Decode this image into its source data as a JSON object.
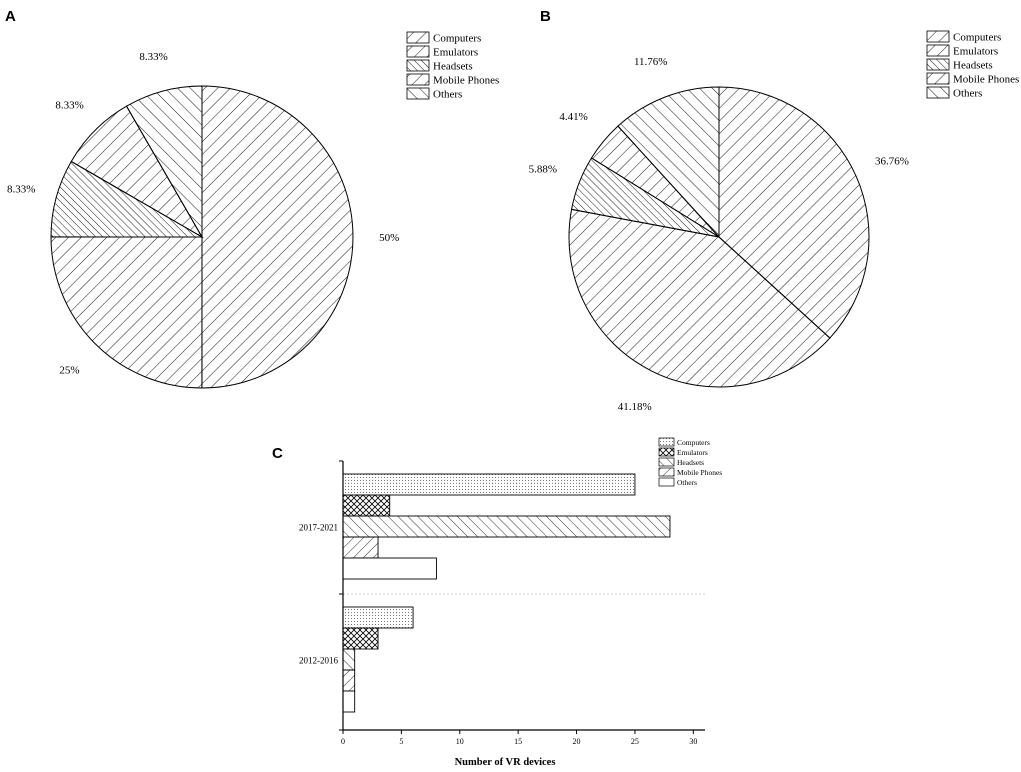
{
  "colors": {
    "ink": "#000000",
    "background": "#ffffff",
    "grid": "#bbbbbb"
  },
  "chart_data": [
    {
      "panel": "A",
      "type": "pie",
      "legend": [
        "Computers",
        "Emulators",
        "Headsets",
        "Mobile Phones",
        "Others"
      ],
      "slices": [
        {
          "label": "Mobile Phones",
          "value": 50,
          "pct_label": "50%",
          "hatch": "mobile"
        },
        {
          "label": "Computers",
          "value": 25,
          "pct_label": "25%",
          "hatch": "computers"
        },
        {
          "label": "Headsets",
          "value": 8.33,
          "pct_label": "8.33%",
          "hatch": "headsets"
        },
        {
          "label": "Emulators",
          "value": 8.33,
          "pct_label": "8.33%",
          "hatch": "emulators"
        },
        {
          "label": "Others",
          "value": 8.33,
          "pct_label": "8.33%",
          "hatch": "others"
        }
      ]
    },
    {
      "panel": "B",
      "type": "pie",
      "legend": [
        "Computers",
        "Emulators",
        "Headsets",
        "Mobile Phones",
        "Others"
      ],
      "slices": [
        {
          "label": "Mobile Phones",
          "value": 36.76,
          "pct_label": "36.76%",
          "hatch": "mobile"
        },
        {
          "label": "Computers",
          "value": 41.18,
          "pct_label": "41.18%",
          "hatch": "computers"
        },
        {
          "label": "Headsets",
          "value": 5.88,
          "pct_label": "5.88%",
          "hatch": "headsets"
        },
        {
          "label": "Emulators",
          "value": 4.41,
          "pct_label": "4.41%",
          "hatch": "emulators"
        },
        {
          "label": "Others",
          "value": 11.76,
          "pct_label": "11.76%",
          "hatch": "others"
        }
      ]
    },
    {
      "panel": "C",
      "type": "bar",
      "orientation": "horizontal",
      "categories": [
        "2017-2021",
        "2012-2016"
      ],
      "series": [
        {
          "name": "Computers",
          "values": [
            25,
            6
          ],
          "hatch": "dots"
        },
        {
          "name": "Emulators",
          "values": [
            4,
            3
          ],
          "hatch": "cross"
        },
        {
          "name": "Headsets",
          "values": [
            28,
            1
          ],
          "hatch": "back"
        },
        {
          "name": "Mobile Phones",
          "values": [
            3,
            1
          ],
          "hatch": "fwd"
        },
        {
          "name": "Others",
          "values": [
            8,
            1
          ],
          "hatch": "none"
        }
      ],
      "xlabel": "Number of VR devices",
      "xlim": [
        0,
        31
      ],
      "xticks": [
        0,
        5,
        10,
        15,
        20,
        25,
        30
      ],
      "legend_position": "top-right"
    }
  ]
}
